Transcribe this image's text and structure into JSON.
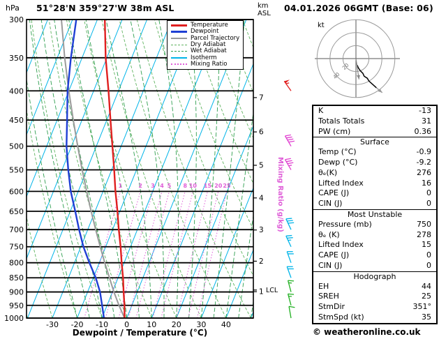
{
  "header": {
    "pressure_unit": "hPa",
    "station": "51°28'N 359°27'W 38m ASL",
    "datetime": "04.01.2026 06GMT (Base: 06)",
    "alt_unit_line1": "km",
    "alt_unit_line2": "ASL"
  },
  "chart_data": {
    "type": "skewt_log_p",
    "pressure_axis": {
      "unit": "hPa",
      "top": 300,
      "bottom": 1000,
      "ticks": [
        300,
        350,
        400,
        450,
        500,
        550,
        600,
        650,
        700,
        750,
        800,
        850,
        900,
        950,
        1000
      ]
    },
    "temp_axis": {
      "label": "Dewpoint / Temperature (°C)",
      "ticks": [
        -30,
        -20,
        -10,
        0,
        10,
        20,
        30,
        40
      ],
      "min": -40,
      "max": 40
    },
    "km_axis": {
      "marks": [
        {
          "km": 1,
          "p": 899
        },
        {
          "km": 2,
          "p": 795
        },
        {
          "km": 3,
          "p": 701
        },
        {
          "km": 4,
          "p": 616
        },
        {
          "km": 5,
          "p": 540
        },
        {
          "km": 6,
          "p": 472
        },
        {
          "km": 7,
          "p": 411
        }
      ],
      "lcl": {
        "label": "LCL",
        "p": 893
      }
    },
    "grid": {
      "isotherms": {
        "min": -90,
        "max": 50,
        "step": 10,
        "color": "#00b4e8"
      },
      "dry_adiabats": {
        "min": -40,
        "max": 130,
        "step": 10,
        "color": "#5fb35f"
      },
      "wet_adiabats": {
        "min": -20,
        "max": 50,
        "step": 5,
        "color": "#2e9e4f"
      },
      "mixing_ratio": {
        "values": [
          1,
          2,
          3,
          4,
          5,
          8,
          10,
          15,
          20,
          25
        ],
        "top_p": 600,
        "color": "#df5fd8",
        "axis_label": "Mixing Ratio (g/kg)"
      }
    },
    "series": [
      {
        "name": "Temperature",
        "color": "#e01f1f",
        "width": 2.4,
        "points": [
          [
            1000,
            -0.9
          ],
          [
            950,
            -3
          ],
          [
            900,
            -5.5
          ],
          [
            850,
            -8
          ],
          [
            800,
            -11
          ],
          [
            750,
            -14
          ],
          [
            700,
            -17.5
          ],
          [
            650,
            -21
          ],
          [
            600,
            -25
          ],
          [
            550,
            -29
          ],
          [
            500,
            -33.5
          ],
          [
            450,
            -38.5
          ],
          [
            400,
            -44
          ],
          [
            350,
            -50.5
          ],
          [
            300,
            -57
          ]
        ]
      },
      {
        "name": "Dewpoint",
        "color": "#1f3fd4",
        "width": 2.4,
        "points": [
          [
            1000,
            -9.2
          ],
          [
            950,
            -12
          ],
          [
            900,
            -15
          ],
          [
            850,
            -19
          ],
          [
            800,
            -24
          ],
          [
            750,
            -29
          ],
          [
            700,
            -33.5
          ],
          [
            650,
            -38
          ],
          [
            600,
            -43
          ],
          [
            550,
            -47.5
          ],
          [
            500,
            -52
          ],
          [
            450,
            -56
          ],
          [
            400,
            -60.5
          ],
          [
            350,
            -64.5
          ],
          [
            300,
            -68.5
          ]
        ]
      },
      {
        "name": "Parcel Trajectory",
        "color": "#9a9a9a",
        "width": 2,
        "points": [
          [
            1000,
            -0.9
          ],
          [
            950,
            -5.2
          ],
          [
            900,
            -9.4
          ],
          [
            850,
            -13.5
          ],
          [
            800,
            -17.8
          ],
          [
            750,
            -22.2
          ],
          [
            700,
            -26.8
          ],
          [
            650,
            -31.6
          ],
          [
            600,
            -36.6
          ],
          [
            550,
            -41.9
          ],
          [
            500,
            -47.5
          ],
          [
            450,
            -53.5
          ],
          [
            400,
            -60
          ],
          [
            350,
            -67
          ],
          [
            300,
            -74.5
          ]
        ]
      }
    ],
    "wind_barbs": [
      [
        1000,
        10,
        350,
        "#1faf1f"
      ],
      [
        950,
        15,
        345,
        "#1faf1f"
      ],
      [
        900,
        15,
        345,
        "#1faf1f"
      ],
      [
        850,
        20,
        340,
        "#00b4e8"
      ],
      [
        800,
        20,
        340,
        "#00b4e8"
      ],
      [
        750,
        25,
        335,
        "#00b4e8"
      ],
      [
        700,
        30,
        335,
        "#00b4e8"
      ],
      [
        550,
        35,
        330,
        "#e040d0"
      ],
      [
        500,
        40,
        330,
        "#e040d0"
      ],
      [
        400,
        55,
        325,
        "#e01f1f"
      ]
    ]
  },
  "legend": {
    "items": [
      {
        "label": "Temperature",
        "color": "#e01f1f",
        "style": "solid",
        "width": 3
      },
      {
        "label": "Dewpoint",
        "color": "#1f3fd4",
        "style": "solid",
        "width": 3
      },
      {
        "label": "Parcel Trajectory",
        "color": "#9a9a9a",
        "style": "solid",
        "width": 2
      },
      {
        "label": "Dry Adiabat",
        "color": "#5fb35f",
        "style": "dashed",
        "width": 1
      },
      {
        "label": "Wet Adiabat",
        "color": "#2e9e4f",
        "style": "dashed",
        "width": 1
      },
      {
        "label": "Isotherm",
        "color": "#00b4e8",
        "style": "solid",
        "width": 2
      },
      {
        "label": "Mixing Ratio",
        "color": "#df5fd8",
        "style": "dotted",
        "width": 2
      }
    ]
  },
  "hodograph": {
    "unit": "kt",
    "rings": [
      20,
      40,
      60
    ],
    "ring_labels": [
      "20",
      "40"
    ],
    "trace": [
      [
        1.7,
        -9.9
      ],
      [
        3.9,
        -14.5
      ],
      [
        6.8,
        -18.8
      ],
      [
        10.6,
        -22.7
      ],
      [
        12.7,
        -27.2
      ],
      [
        17.5,
        -30.3
      ],
      [
        20,
        -34.6
      ],
      [
        31.5,
        -45
      ]
    ],
    "gray_tail": [
      [
        31.5,
        -45
      ],
      [
        40.5,
        -52.5
      ]
    ],
    "storm_vector": [
      4.7,
      -32
    ]
  },
  "stats": {
    "sections": [
      {
        "title": "",
        "rows": [
          {
            "label": "K",
            "value": "-13"
          },
          {
            "label": "Totals Totals",
            "value": "31"
          },
          {
            "label": "PW (cm)",
            "value": "0.36"
          }
        ]
      },
      {
        "title": "Surface",
        "rows": [
          {
            "label": "Temp (°C)",
            "value": "-0.9"
          },
          {
            "label": "Dewp (°C)",
            "value": "-9.2"
          },
          {
            "label": "θₑ(K)",
            "value": "276"
          },
          {
            "label": "Lifted Index",
            "value": "16"
          },
          {
            "label": "CAPE (J)",
            "value": "0"
          },
          {
            "label": "CIN (J)",
            "value": "0"
          }
        ]
      },
      {
        "title": "Most Unstable",
        "rows": [
          {
            "label": "Pressure (mb)",
            "value": "750"
          },
          {
            "label": "θₑ (K)",
            "value": "278"
          },
          {
            "label": "Lifted Index",
            "value": "15"
          },
          {
            "label": "CAPE (J)",
            "value": "0"
          },
          {
            "label": "CIN (J)",
            "value": "0"
          }
        ]
      },
      {
        "title": "Hodograph",
        "rows": [
          {
            "label": "EH",
            "value": "44"
          },
          {
            "label": "SREH",
            "value": "25"
          },
          {
            "label": "StmDir",
            "value": "351°"
          },
          {
            "label": "StmSpd (kt)",
            "value": "35"
          }
        ]
      }
    ]
  },
  "footer": {
    "credit": "© weatheronline.co.uk"
  }
}
